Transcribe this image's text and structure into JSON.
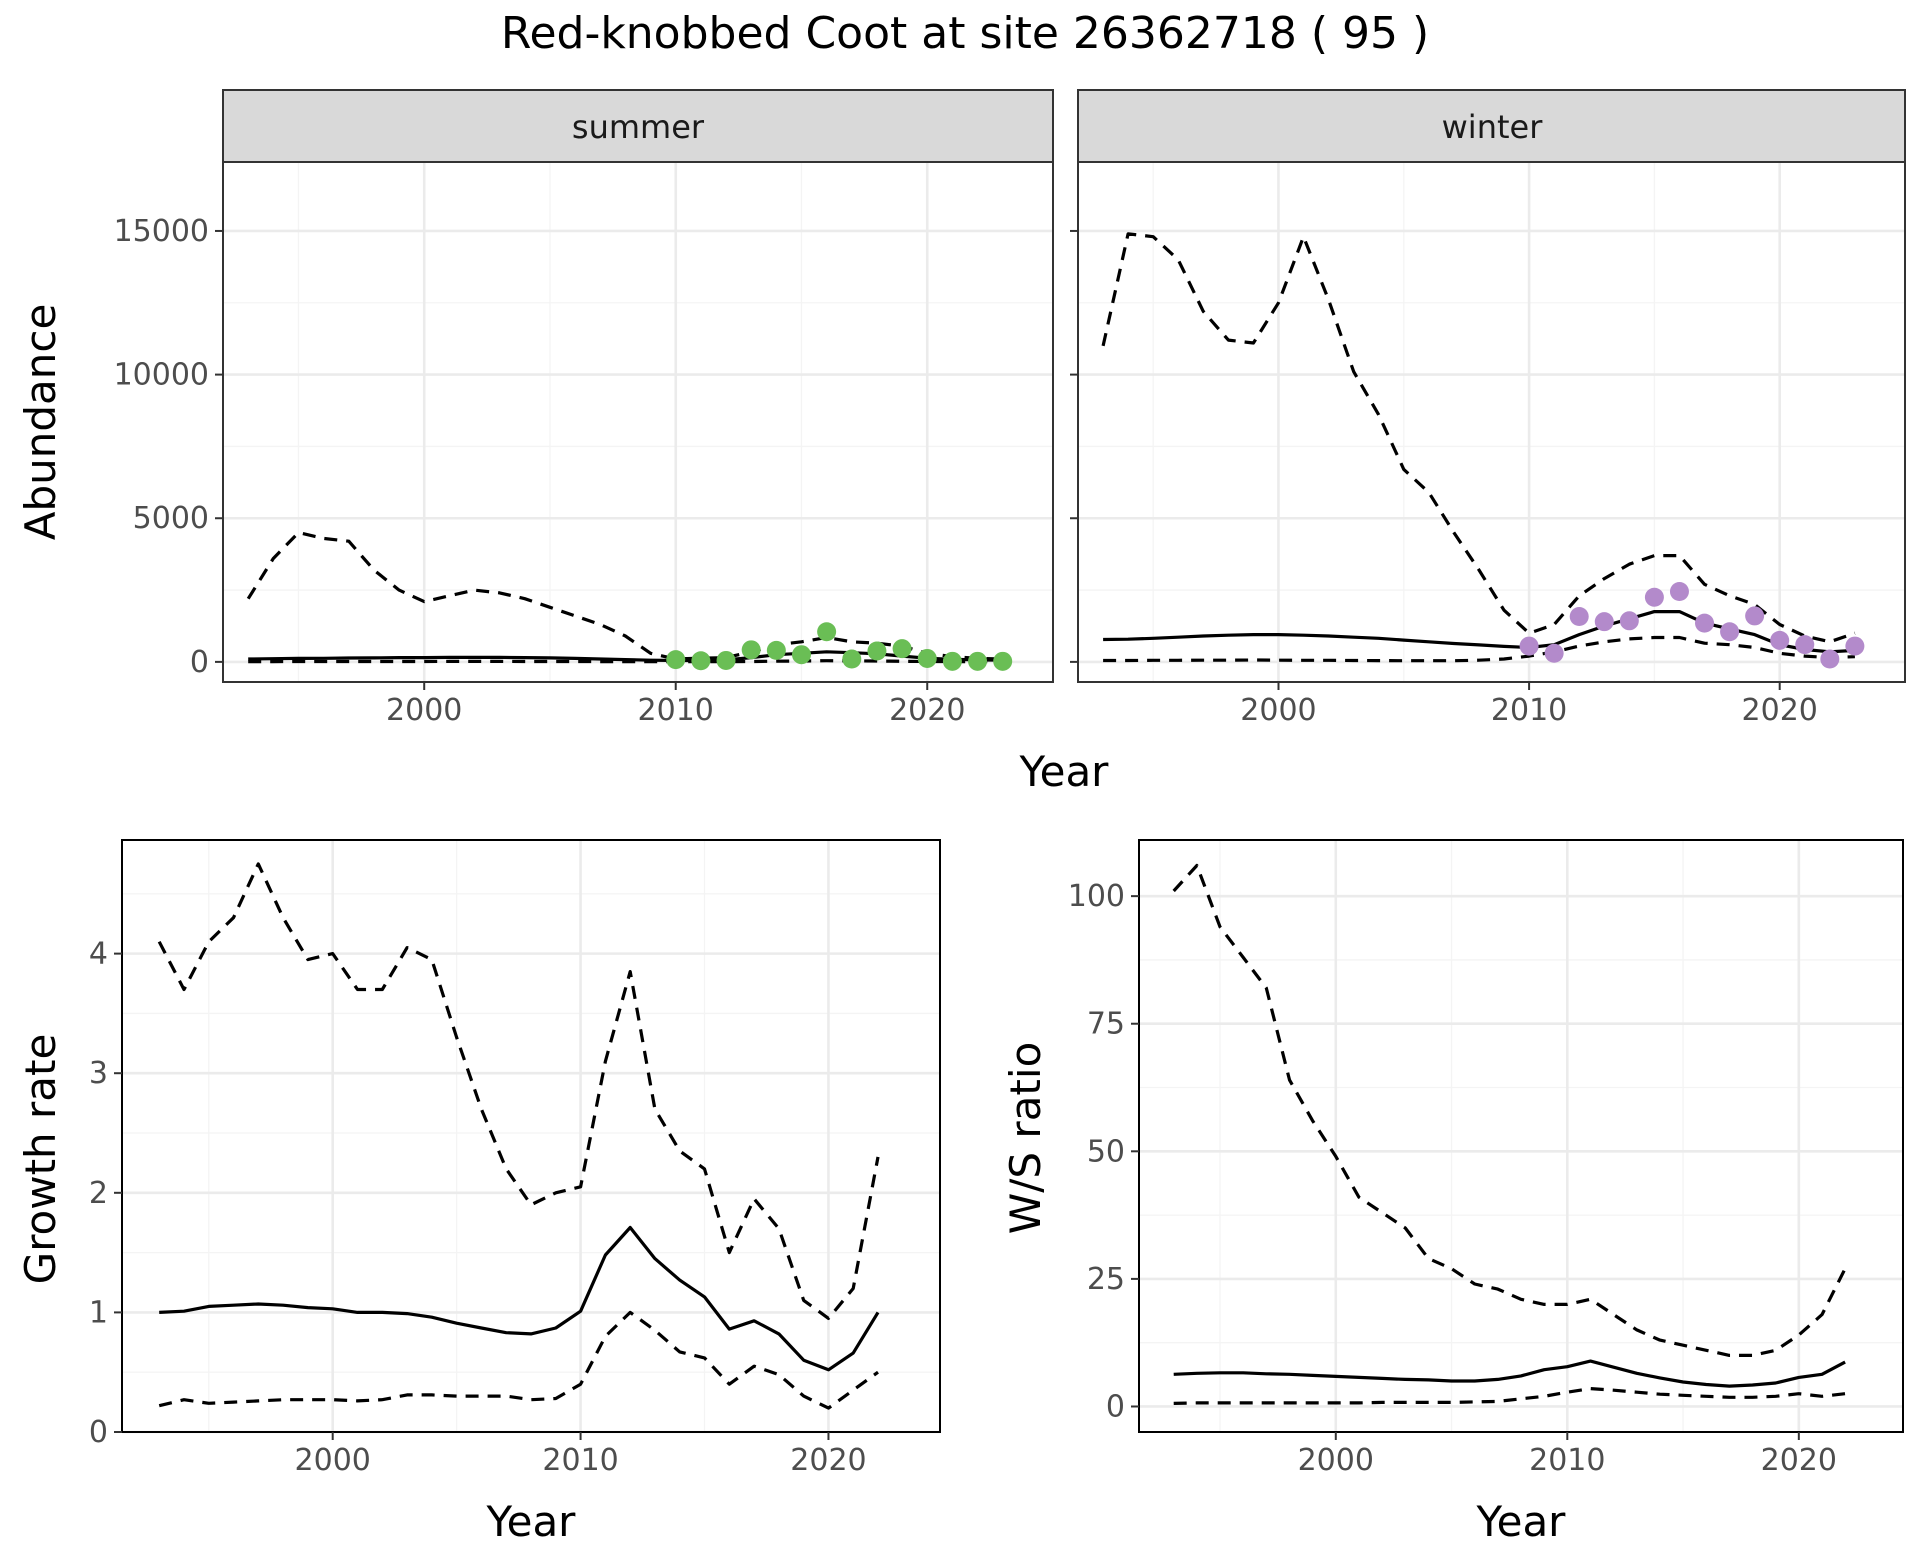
{
  "title": "Red-knobbed Coot at site 26362718 ( 95 )",
  "colors": {
    "summer_points": "#6ABE55",
    "winter_points": "#B38ACB",
    "line": "#000000",
    "strip_fill": "#D9D9D9",
    "grid_major": "#EBEBEB",
    "grid_minor": "#F4F4F4"
  },
  "chart_data": [
    {
      "type": "line",
      "facet": "summer",
      "xlabel": "Year",
      "ylabel": "Abundance",
      "xlim": [
        1992,
        2025
      ],
      "ylim": [
        -700,
        17400
      ],
      "xticks": [
        2000,
        2010,
        2020
      ],
      "yticks": [
        0,
        5000,
        10000,
        15000
      ],
      "grid": true,
      "x": [
        1993,
        1994,
        1995,
        1996,
        1997,
        1998,
        1999,
        2000,
        2001,
        2002,
        2003,
        2004,
        2005,
        2006,
        2007,
        2008,
        2009,
        2010,
        2011,
        2012,
        2013,
        2014,
        2015,
        2016,
        2017,
        2018,
        2019,
        2020,
        2021,
        2022,
        2023
      ],
      "series": [
        {
          "role": "estimate",
          "values": [
            100,
            110,
            120,
            125,
            135,
            140,
            150,
            150,
            155,
            158,
            155,
            150,
            140,
            120,
            100,
            80,
            60,
            50,
            50,
            70,
            150,
            250,
            300,
            350,
            320,
            280,
            200,
            130,
            90,
            70,
            60
          ]
        },
        {
          "role": "upper",
          "values": [
            2200,
            3600,
            4500,
            4300,
            4200,
            3200,
            2500,
            2100,
            2300,
            2500,
            2400,
            2200,
            1900,
            1600,
            1300,
            900,
            300,
            100,
            130,
            150,
            350,
            600,
            700,
            850,
            700,
            650,
            550,
            300,
            180,
            120,
            100
          ]
        },
        {
          "role": "lower",
          "values": [
            10,
            10,
            12,
            12,
            13,
            15,
            15,
            15,
            16,
            16,
            16,
            15,
            14,
            12,
            10,
            8,
            6,
            5,
            5,
            7,
            15,
            25,
            30,
            40,
            35,
            30,
            20,
            13,
            9,
            7,
            6
          ]
        }
      ],
      "points": {
        "x": [
          2010,
          2011,
          2012,
          2013,
          2014,
          2015,
          2016,
          2017,
          2018,
          2019,
          2020,
          2021,
          2022,
          2023
        ],
        "y": [
          80,
          40,
          50,
          420,
          400,
          250,
          1050,
          100,
          380,
          460,
          120,
          20,
          20,
          20
        ]
      }
    },
    {
      "type": "line",
      "facet": "winter",
      "xlabel": "Year",
      "ylabel": "Abundance",
      "xlim": [
        1992,
        2025
      ],
      "ylim": [
        -700,
        17400
      ],
      "xticks": [
        2000,
        2010,
        2020
      ],
      "yticks": [
        0,
        5000,
        10000,
        15000
      ],
      "grid": true,
      "x": [
        1993,
        1994,
        1995,
        1996,
        1997,
        1998,
        1999,
        2000,
        2001,
        2002,
        2003,
        2004,
        2005,
        2006,
        2007,
        2008,
        2009,
        2010,
        2011,
        2012,
        2013,
        2014,
        2015,
        2016,
        2017,
        2018,
        2019,
        2020,
        2021,
        2022,
        2023
      ],
      "series": [
        {
          "role": "estimate",
          "values": [
            780,
            790,
            820,
            860,
            900,
            930,
            950,
            950,
            930,
            900,
            860,
            820,
            760,
            700,
            640,
            590,
            540,
            500,
            600,
            950,
            1250,
            1500,
            1750,
            1750,
            1350,
            1150,
            950,
            600,
            430,
            350,
            400
          ]
        },
        {
          "role": "upper",
          "values": [
            11000,
            14900,
            14800,
            14000,
            12200,
            11200,
            11100,
            12500,
            14800,
            12600,
            10100,
            8600,
            6700,
            5900,
            4500,
            3200,
            1800,
            1000,
            1300,
            2300,
            2900,
            3400,
            3700,
            3700,
            2700,
            2300,
            2000,
            1300,
            900,
            700,
            1000
          ]
        },
        {
          "role": "lower",
          "values": [
            50,
            50,
            55,
            55,
            60,
            60,
            65,
            60,
            55,
            55,
            50,
            45,
            40,
            40,
            40,
            60,
            100,
            200,
            350,
            550,
            700,
            800,
            850,
            850,
            650,
            600,
            500,
            300,
            200,
            150,
            180
          ]
        }
      ],
      "points": {
        "x": [
          2010,
          2011,
          2012,
          2013,
          2014,
          2015,
          2016,
          2017,
          2018,
          2019,
          2020,
          2021,
          2022,
          2023
        ],
        "y": [
          550,
          300,
          1580,
          1400,
          1430,
          2250,
          2450,
          1350,
          1050,
          1600,
          750,
          600,
          100,
          550
        ]
      }
    },
    {
      "type": "line",
      "xlabel": "Year",
      "ylabel": "Growth rate",
      "xlim": [
        1991.5,
        2024.5
      ],
      "ylim": [
        0,
        4.95
      ],
      "xticks": [
        2000,
        2010,
        2020
      ],
      "yticks": [
        0,
        1,
        2,
        3,
        4
      ],
      "grid": true,
      "x": [
        1993,
        1994,
        1995,
        1996,
        1997,
        1998,
        1999,
        2000,
        2001,
        2002,
        2003,
        2004,
        2005,
        2006,
        2007,
        2008,
        2009,
        2010,
        2011,
        2012,
        2013,
        2014,
        2015,
        2016,
        2017,
        2018,
        2019,
        2020,
        2021,
        2022
      ],
      "series": [
        {
          "role": "estimate",
          "values": [
            1.0,
            1.01,
            1.05,
            1.06,
            1.07,
            1.06,
            1.04,
            1.03,
            1.0,
            1.0,
            0.99,
            0.96,
            0.91,
            0.87,
            0.83,
            0.82,
            0.87,
            1.01,
            1.48,
            1.71,
            1.45,
            1.27,
            1.13,
            0.86,
            0.93,
            0.82,
            0.6,
            0.52,
            0.66,
            1.0
          ]
        },
        {
          "role": "upper",
          "values": [
            4.1,
            3.7,
            4.1,
            4.3,
            4.75,
            4.3,
            3.95,
            4.0,
            3.7,
            3.7,
            4.05,
            3.95,
            3.3,
            2.7,
            2.2,
            1.9,
            2.0,
            2.05,
            3.1,
            3.85,
            2.7,
            2.35,
            2.2,
            1.5,
            1.95,
            1.7,
            1.1,
            0.95,
            1.2,
            2.3
          ]
        },
        {
          "role": "lower",
          "values": [
            0.22,
            0.27,
            0.24,
            0.25,
            0.26,
            0.27,
            0.27,
            0.27,
            0.26,
            0.27,
            0.31,
            0.31,
            0.3,
            0.3,
            0.3,
            0.27,
            0.28,
            0.4,
            0.8,
            1.0,
            0.85,
            0.67,
            0.62,
            0.4,
            0.55,
            0.48,
            0.3,
            0.2,
            0.35,
            0.5
          ]
        }
      ]
    },
    {
      "type": "line",
      "xlabel": "Year",
      "ylabel": "W/S ratio",
      "xlim": [
        1991.5,
        2024.5
      ],
      "ylim": [
        -5,
        111
      ],
      "xticks": [
        2000,
        2010,
        2020
      ],
      "yticks": [
        0,
        25,
        50,
        75,
        100
      ],
      "grid": true,
      "x": [
        1993,
        1994,
        1995,
        1996,
        1997,
        1998,
        1999,
        2000,
        2001,
        2002,
        2003,
        2004,
        2005,
        2006,
        2007,
        2008,
        2009,
        2010,
        2011,
        2012,
        2013,
        2014,
        2015,
        2016,
        2017,
        2018,
        2019,
        2020,
        2021,
        2022
      ],
      "series": [
        {
          "role": "estimate",
          "values": [
            6.3,
            6.5,
            6.6,
            6.6,
            6.4,
            6.3,
            6.1,
            5.9,
            5.7,
            5.5,
            5.3,
            5.2,
            5.0,
            5.0,
            5.3,
            6.0,
            7.2,
            7.8,
            8.9,
            7.7,
            6.5,
            5.6,
            4.8,
            4.3,
            4.0,
            4.2,
            4.6,
            5.7,
            6.3,
            8.7
          ]
        },
        {
          "role": "upper",
          "values": [
            101,
            106,
            94,
            88,
            82,
            64,
            56,
            49,
            41,
            38,
            35,
            29,
            27,
            24,
            23,
            21,
            20,
            20,
            21,
            18,
            15,
            13,
            12,
            11,
            10,
            10,
            11,
            14,
            18,
            27
          ]
        },
        {
          "role": "lower",
          "values": [
            0.6,
            0.7,
            0.7,
            0.7,
            0.7,
            0.7,
            0.7,
            0.7,
            0.7,
            0.8,
            0.8,
            0.8,
            0.8,
            0.9,
            1.0,
            1.5,
            2.0,
            2.8,
            3.5,
            3.2,
            2.8,
            2.4,
            2.2,
            2.0,
            1.8,
            1.8,
            2.0,
            2.5,
            2.0,
            2.5
          ]
        }
      ]
    }
  ]
}
